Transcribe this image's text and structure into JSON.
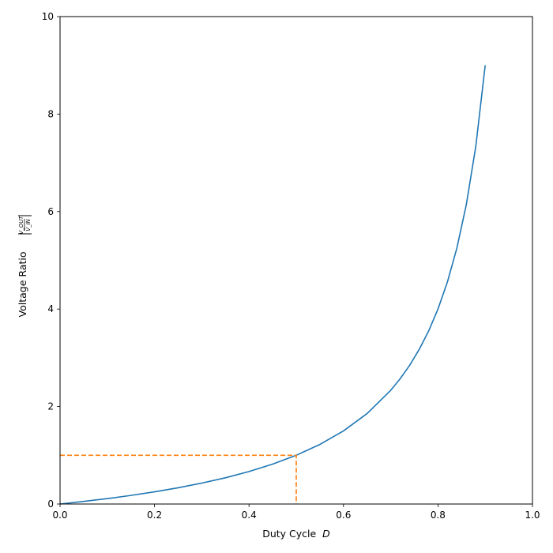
{
  "chart_data": {
    "type": "line",
    "xlabel": "Duty Cycle",
    "xlabel_var": "D",
    "ylabel": "Voltage Ratio",
    "ylabel_num": "V_OUT",
    "ylabel_den": "V_IN",
    "xlim": [
      0.0,
      1.0
    ],
    "ylim": [
      0,
      10
    ],
    "x_ticks": [
      "0.0",
      "0.2",
      "0.4",
      "0.6",
      "0.8",
      "1.0"
    ],
    "y_ticks": [
      "0",
      "2",
      "4",
      "6",
      "8",
      "10"
    ],
    "grid": false,
    "series": [
      {
        "kind": "curve",
        "color": "#1f77b4",
        "x": [
          0.0,
          0.05,
          0.1,
          0.15,
          0.2,
          0.25,
          0.3,
          0.35,
          0.4,
          0.45,
          0.5,
          0.55,
          0.6,
          0.65,
          0.7,
          0.72,
          0.74,
          0.76,
          0.78,
          0.8,
          0.82,
          0.84,
          0.86,
          0.88,
          0.9
        ],
        "y": [
          0.0,
          0.053,
          0.111,
          0.176,
          0.25,
          0.333,
          0.429,
          0.538,
          0.667,
          0.818,
          1.0,
          1.222,
          1.5,
          1.857,
          2.333,
          2.571,
          2.846,
          3.167,
          3.545,
          4.0,
          4.556,
          5.25,
          6.143,
          7.333,
          9.0
        ]
      },
      {
        "kind": "reference",
        "color": "#ff7f0e",
        "dashed": true,
        "x": [
          0.0,
          0.5,
          0.5
        ],
        "y": [
          1.0,
          1.0,
          0.0
        ]
      }
    ]
  }
}
